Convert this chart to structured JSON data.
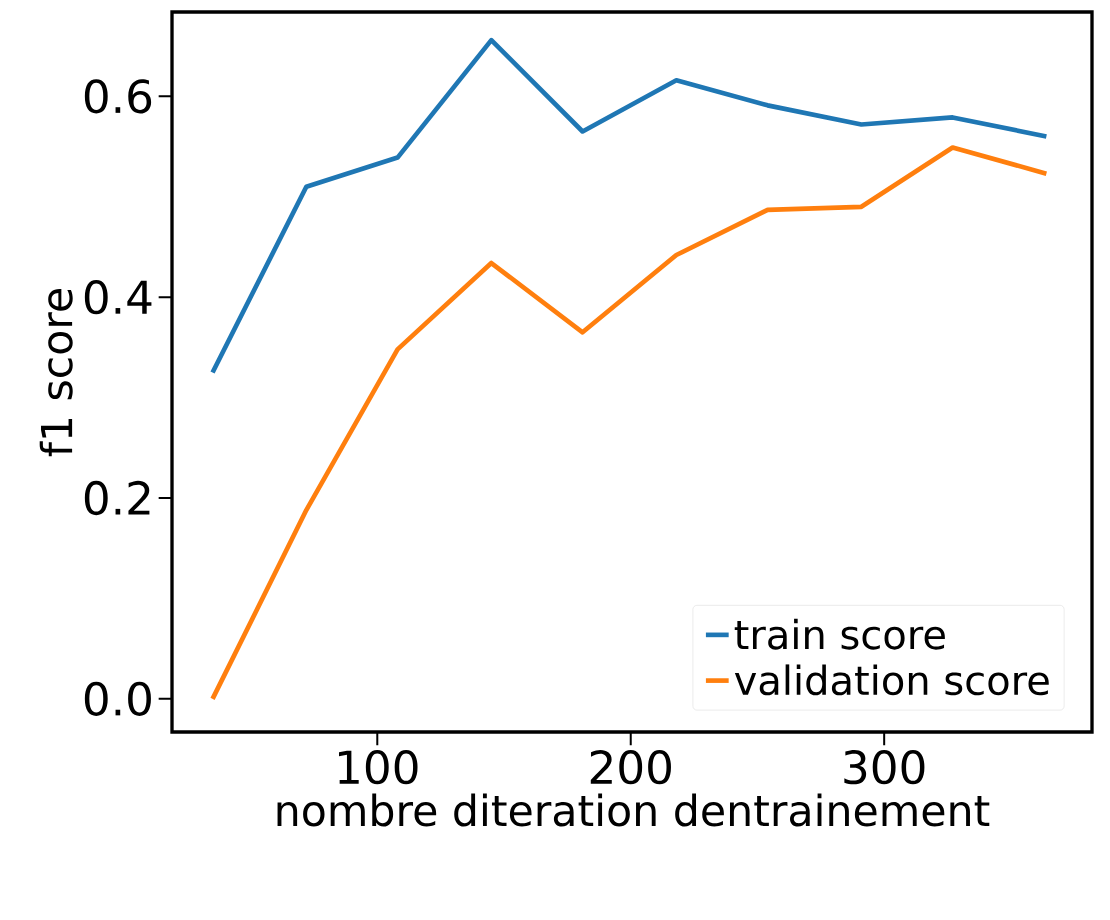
{
  "chart_data": {
    "type": "line",
    "xlabel": "nombre diteration dentrainement",
    "ylabel": "f1 score",
    "x": [
      35,
      72,
      108,
      145,
      181,
      218,
      254,
      291,
      327,
      364
    ],
    "series": [
      {
        "name": "train score",
        "color": "#1f77b4",
        "values": [
          0.325,
          0.51,
          0.539,
          0.656,
          0.565,
          0.616,
          0.591,
          0.572,
          0.579,
          0.56
        ]
      },
      {
        "name": "validation score",
        "color": "#ff7f0e",
        "values": [
          0.0,
          0.188,
          0.348,
          0.434,
          0.365,
          0.442,
          0.487,
          0.49,
          0.549,
          0.523
        ]
      }
    ],
    "xlim": [
      19,
      382
    ],
    "ylim": [
      -0.033,
      0.684
    ],
    "xticks": [
      100,
      200,
      300
    ],
    "yticks": [
      {
        "value": 0.0,
        "label": "0.0"
      },
      {
        "value": 0.2,
        "label": "0.2"
      },
      {
        "value": 0.4,
        "label": "0.4"
      },
      {
        "value": 0.6,
        "label": "0.6"
      }
    ],
    "legend": "bottom right",
    "grid": false,
    "marker": "none",
    "line_style": "solid"
  }
}
